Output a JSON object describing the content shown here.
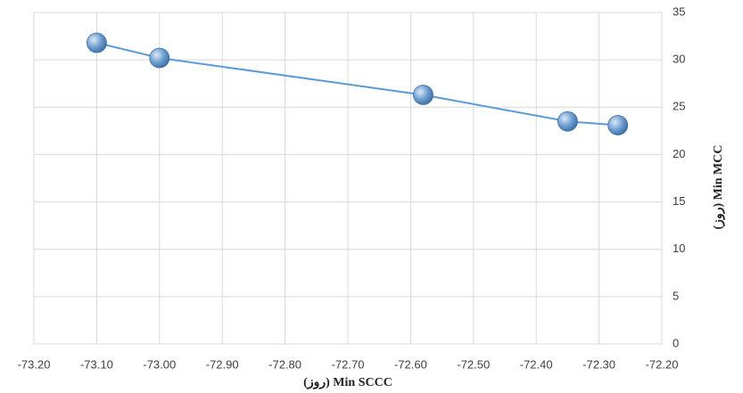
{
  "chart_data": {
    "type": "line",
    "x_label": "(روز) Min SCCC",
    "y_label": "(روز) Min MCC",
    "x": [
      -73.1,
      -73.0,
      -72.58,
      -72.35,
      -72.27
    ],
    "series": [
      {
        "color": "#5b9bd5",
        "values": [
          31.8,
          30.2,
          26.3,
          23.5,
          23.1
        ]
      }
    ],
    "xlim": [
      -73.2,
      -72.2
    ],
    "xticks": [
      {
        "value": -73.2,
        "label": "-73.20"
      },
      {
        "value": -73.1,
        "label": "-73.10"
      },
      {
        "value": -73.0,
        "label": "-73.00"
      },
      {
        "value": -72.9,
        "label": "-72.90"
      },
      {
        "value": -72.8,
        "label": "-72.80"
      },
      {
        "value": -72.7,
        "label": "-72.70"
      },
      {
        "value": -72.6,
        "label": "-72.60"
      },
      {
        "value": -72.5,
        "label": "-72.50"
      },
      {
        "value": -72.4,
        "label": "-72.40"
      },
      {
        "value": -72.3,
        "label": "-72.30"
      },
      {
        "value": -72.2,
        "label": "-72.20"
      }
    ],
    "ylim": [
      0,
      35
    ],
    "yticks": [
      0,
      5,
      10,
      15,
      20,
      25,
      30,
      35
    ],
    "grid": true
  }
}
